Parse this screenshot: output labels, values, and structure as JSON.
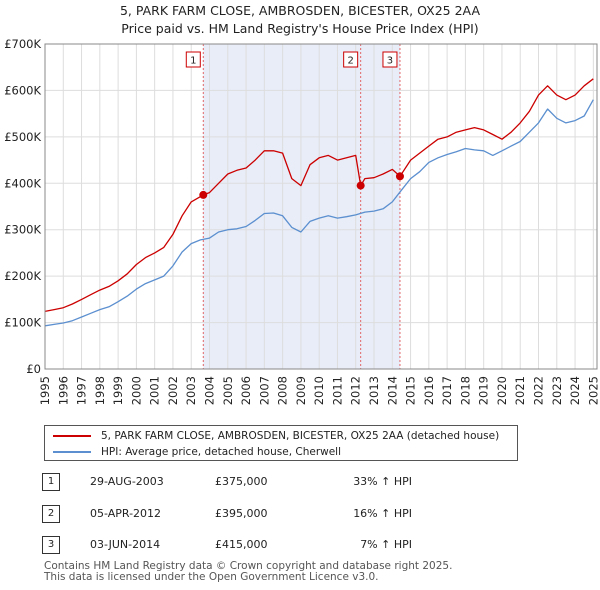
{
  "title_line1": "5, PARK FARM CLOSE, AMBROSDEN, BICESTER, OX25 2AA",
  "title_line2": "Price paid vs. HM Land Registry's House Price Index (HPI)",
  "chart_data": {
    "type": "line",
    "ylim": [
      0,
      700000
    ],
    "xlim": [
      1995,
      2025.2
    ],
    "yticks": [
      0,
      100000,
      200000,
      300000,
      400000,
      500000,
      600000,
      700000
    ],
    "ytick_labels": [
      "£0",
      "£100K",
      "£200K",
      "£300K",
      "£400K",
      "£500K",
      "£600K",
      "£700K"
    ],
    "xticks": [
      1995,
      1996,
      1997,
      1998,
      1999,
      2000,
      2001,
      2002,
      2003,
      2004,
      2005,
      2006,
      2007,
      2008,
      2009,
      2010,
      2011,
      2012,
      2013,
      2014,
      2015,
      2016,
      2017,
      2018,
      2019,
      2020,
      2021,
      2022,
      2023,
      2024,
      2025
    ],
    "shaded_span": [
      2003.66,
      2014.42
    ],
    "colors": {
      "property": "#cc0000",
      "hpi": "#5b8fcf",
      "shade": "#e8edf8",
      "marker_line": "#e06666"
    },
    "series": [
      {
        "name": "5, PARK FARM CLOSE, AMBROSDEN, BICESTER, OX25 2AA (detached house)",
        "color": "#cc0000",
        "x": [
          1995.0,
          1995.5,
          1996.0,
          1996.5,
          1997.0,
          1997.5,
          1998.0,
          1998.5,
          1999.0,
          1999.5,
          2000.0,
          2000.5,
          2001.0,
          2001.5,
          2002.0,
          2002.5,
          2003.0,
          2003.66,
          2004.0,
          2004.5,
          2005.0,
          2005.5,
          2006.0,
          2006.5,
          2007.0,
          2007.5,
          2008.0,
          2008.5,
          2009.0,
          2009.5,
          2010.0,
          2010.5,
          2011.0,
          2011.5,
          2012.0,
          2012.27,
          2012.5,
          2013.0,
          2013.5,
          2014.0,
          2014.42,
          2015.0,
          2015.5,
          2016.0,
          2016.5,
          2017.0,
          2017.5,
          2018.0,
          2018.5,
          2019.0,
          2019.5,
          2020.0,
          2020.5,
          2021.0,
          2021.5,
          2022.0,
          2022.5,
          2023.0,
          2023.5,
          2024.0,
          2024.5,
          2025.0
        ],
        "y": [
          124000,
          128000,
          132000,
          140000,
          150000,
          160000,
          170000,
          178000,
          190000,
          205000,
          225000,
          240000,
          250000,
          262000,
          290000,
          330000,
          360000,
          375000,
          380000,
          400000,
          420000,
          428000,
          433000,
          450000,
          470000,
          470000,
          465000,
          410000,
          395000,
          440000,
          455000,
          460000,
          450000,
          455000,
          460000,
          395000,
          410000,
          412000,
          420000,
          430000,
          415000,
          450000,
          465000,
          480000,
          495000,
          500000,
          510000,
          515000,
          520000,
          515000,
          505000,
          495000,
          510000,
          530000,
          555000,
          590000,
          610000,
          590000,
          580000,
          590000,
          610000,
          625000
        ]
      },
      {
        "name": "HPI: Average price, detached house, Cherwell",
        "color": "#5b8fcf",
        "x": [
          1995.0,
          1995.5,
          1996.0,
          1996.5,
          1997.0,
          1997.5,
          1998.0,
          1998.5,
          1999.0,
          1999.5,
          2000.0,
          2000.5,
          2001.0,
          2001.5,
          2002.0,
          2002.5,
          2003.0,
          2003.5,
          2004.0,
          2004.5,
          2005.0,
          2005.5,
          2006.0,
          2006.5,
          2007.0,
          2007.5,
          2008.0,
          2008.5,
          2009.0,
          2009.5,
          2010.0,
          2010.5,
          2011.0,
          2011.5,
          2012.0,
          2012.5,
          2013.0,
          2013.5,
          2014.0,
          2014.5,
          2015.0,
          2015.5,
          2016.0,
          2016.5,
          2017.0,
          2017.5,
          2018.0,
          2018.5,
          2019.0,
          2019.5,
          2020.0,
          2020.5,
          2021.0,
          2021.5,
          2022.0,
          2022.5,
          2023.0,
          2023.5,
          2024.0,
          2024.5,
          2025.0
        ],
        "y": [
          93000,
          96000,
          99000,
          104000,
          112000,
          120000,
          128000,
          134000,
          145000,
          157000,
          172000,
          184000,
          192000,
          200000,
          222000,
          252000,
          270000,
          278000,
          282000,
          295000,
          300000,
          302000,
          307000,
          320000,
          335000,
          336000,
          330000,
          305000,
          295000,
          318000,
          325000,
          330000,
          325000,
          328000,
          332000,
          338000,
          340000,
          345000,
          360000,
          385000,
          410000,
          425000,
          445000,
          455000,
          462000,
          468000,
          475000,
          472000,
          470000,
          460000,
          470000,
          480000,
          490000,
          510000,
          530000,
          560000,
          540000,
          530000,
          535000,
          545000,
          580000
        ]
      }
    ],
    "sales": [
      {
        "label": "1",
        "x": 2003.66,
        "y": 375000
      },
      {
        "label": "2",
        "x": 2012.27,
        "y": 395000
      },
      {
        "label": "3",
        "x": 2014.42,
        "y": 415000
      }
    ]
  },
  "legend": {
    "property_label": "5, PARK FARM CLOSE, AMBROSDEN, BICESTER, OX25 2AA (detached house)",
    "hpi_label": "HPI: Average price, detached house, Cherwell"
  },
  "transactions": [
    {
      "num": "1",
      "date": "29-AUG-2003",
      "price": "£375,000",
      "hpi": "33% ↑ HPI"
    },
    {
      "num": "2",
      "date": "05-APR-2012",
      "price": "£395,000",
      "hpi": "16% ↑ HPI"
    },
    {
      "num": "3",
      "date": "03-JUN-2014",
      "price": "£415,000",
      "hpi": "7% ↑ HPI"
    }
  ],
  "footer": {
    "line1": "Contains HM Land Registry data © Crown copyright and database right 2025.",
    "line2": "This data is licensed under the Open Government Licence v3.0."
  }
}
